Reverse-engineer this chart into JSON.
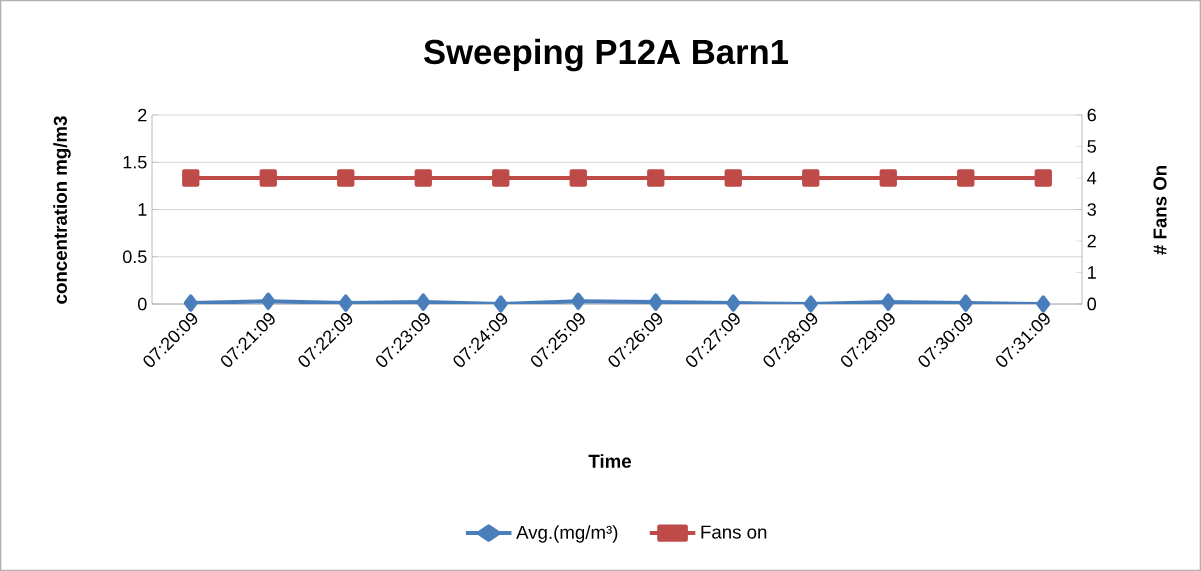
{
  "chart_data": {
    "type": "line",
    "title": "Sweeping P12A Barn1",
    "xlabel": "Time",
    "ylabel": "concentration mg/m3",
    "y2label": "# Fans On",
    "categories": [
      "07:20:09",
      "07:21:09",
      "07:22:09",
      "07:23:09",
      "07:24:09",
      "07:25:09",
      "07:26:09",
      "07:27:09",
      "07:28:09",
      "07:29:09",
      "07:30:09",
      "07:31:09"
    ],
    "series": [
      {
        "name": "Avg.(mg/m³)",
        "color": "#4a7ebb",
        "marker": "diamond",
        "values": [
          0.01,
          0.03,
          0.01,
          0.02,
          0.0,
          0.03,
          0.02,
          0.01,
          0.0,
          0.02,
          0.01,
          0.0
        ]
      },
      {
        "name": "Fans on",
        "color": "#be4b48",
        "marker": "square",
        "axis": "y2",
        "values": [
          4,
          4,
          4,
          4,
          4,
          4,
          4,
          4,
          4,
          4,
          4,
          4
        ]
      }
    ],
    "ylim": [
      0,
      2
    ],
    "yticks": [
      0,
      0.5,
      1,
      1.5,
      2
    ],
    "y2lim": [
      0,
      6
    ],
    "y2ticks": [
      0,
      1,
      2,
      3,
      4,
      5,
      6
    ],
    "grid": "y",
    "legend": "bottom"
  }
}
